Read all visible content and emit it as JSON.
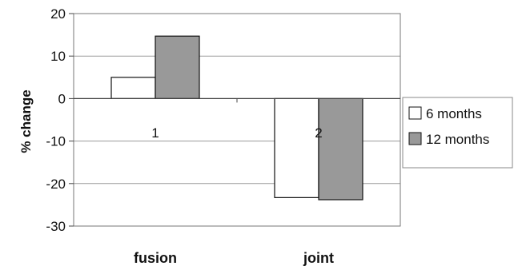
{
  "chart_data": {
    "type": "bar",
    "categories": [
      "fusion",
      "joint"
    ],
    "category_numbers": [
      "1",
      "2"
    ],
    "series": [
      {
        "name": "6 months",
        "values": [
          5,
          -23.3
        ]
      },
      {
        "name": "12 months",
        "values": [
          14.7,
          -23.8
        ]
      }
    ],
    "ylabel": "% change",
    "xlabel": "",
    "ylim": [
      -30,
      20
    ],
    "yticks": [
      "20",
      "10",
      "0",
      "-10",
      "-20",
      "-30"
    ],
    "grid": true,
    "legend_position": "right",
    "colors": {
      "6 months": "#ffffff",
      "12 months": "#999999",
      "stroke": "#111111",
      "grid": "#9a9a9a"
    }
  }
}
